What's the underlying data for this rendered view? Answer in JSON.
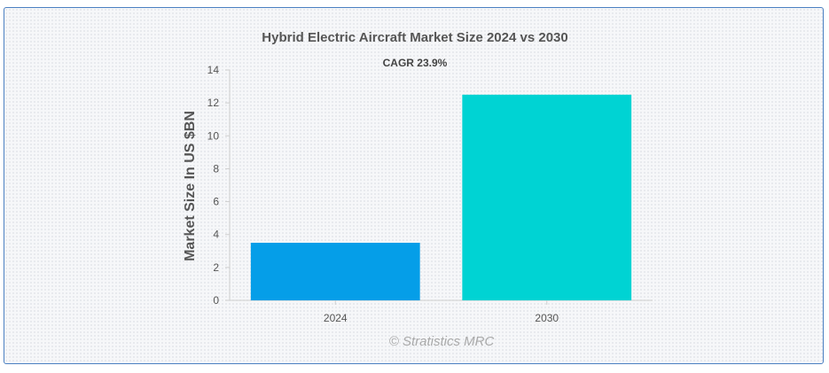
{
  "chart_data": {
    "type": "bar",
    "title": "Hybrid Electric Aircraft Market Size 2024 vs 2030",
    "subtitle": "CAGR 23.9%",
    "xlabel": "",
    "ylabel": "Market Size In US $BN",
    "categories": [
      "2024",
      "2030"
    ],
    "values": [
      3.5,
      12.5
    ],
    "colors": [
      "#059ee8",
      "#00d3d3"
    ],
    "ylim": [
      0,
      14
    ],
    "yticks": [
      "0",
      "2",
      "4",
      "6",
      "8",
      "10",
      "12",
      "14"
    ],
    "grid": false,
    "legend": "none"
  },
  "watermark": "© Stratistics MRC",
  "border_color": "#4a7fc1"
}
